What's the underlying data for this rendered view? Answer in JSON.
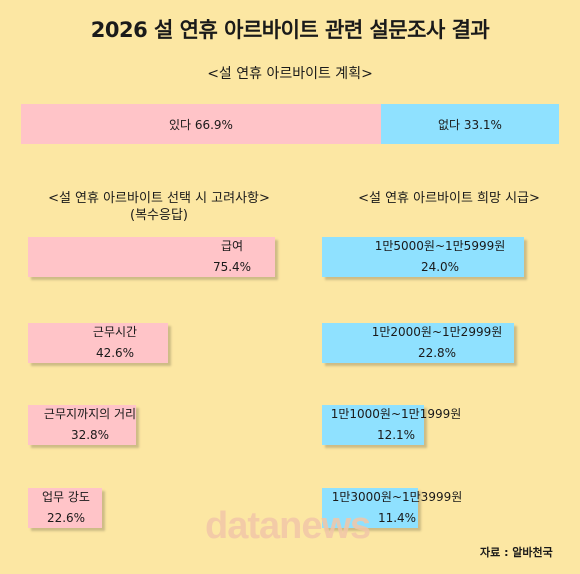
{
  "title": "2026 설 연휴 아르바이트 관련 설문조사 결과",
  "plan_heading": "<설 연휴 아르바이트 계획>",
  "factors_heading": "<설 연휴 아르바이트 선택 시 고려사항>",
  "factors_note": "(복수응답)",
  "wage_heading": "<설 연휴 아르바이트 희망 시급>",
  "source": "자료 : 알바천국",
  "watermark": "datanews",
  "colors": {
    "pink": "#ffc4c8",
    "blue": "#8fe1ff",
    "background": "#fce7a3"
  },
  "chart_data": [
    {
      "type": "bar",
      "title": "<설 연휴 아르바이트 계획>",
      "categories": [
        "있다",
        "없다"
      ],
      "values": [
        66.9,
        33.1
      ],
      "unit": "%",
      "stacked": true,
      "labels": [
        "있다 66.9%",
        "없다 33.1%"
      ]
    },
    {
      "type": "bar",
      "title": "<설 연휴 아르바이트 선택 시 고려사항>",
      "subtitle": "(복수응답)",
      "categories": [
        "급여",
        "근무시간",
        "근무지까지의 거리",
        "업무 강도"
      ],
      "values": [
        75.4,
        42.6,
        32.8,
        22.6
      ],
      "value_labels": [
        "75.4%",
        "42.6%",
        "32.8%",
        "22.6%"
      ],
      "unit": "%"
    },
    {
      "type": "bar",
      "title": "<설 연휴 아르바이트 희망 시급>",
      "categories": [
        "1만5000원~1만5999원",
        "1만2000원~1만2999원",
        "1만1000원~1만1999원",
        "1만3000원~1만3999원"
      ],
      "values": [
        24.0,
        22.8,
        12.1,
        11.4
      ],
      "value_labels": [
        "24.0%",
        "22.8%",
        "12.1%",
        "11.4%"
      ],
      "unit": "%"
    }
  ]
}
